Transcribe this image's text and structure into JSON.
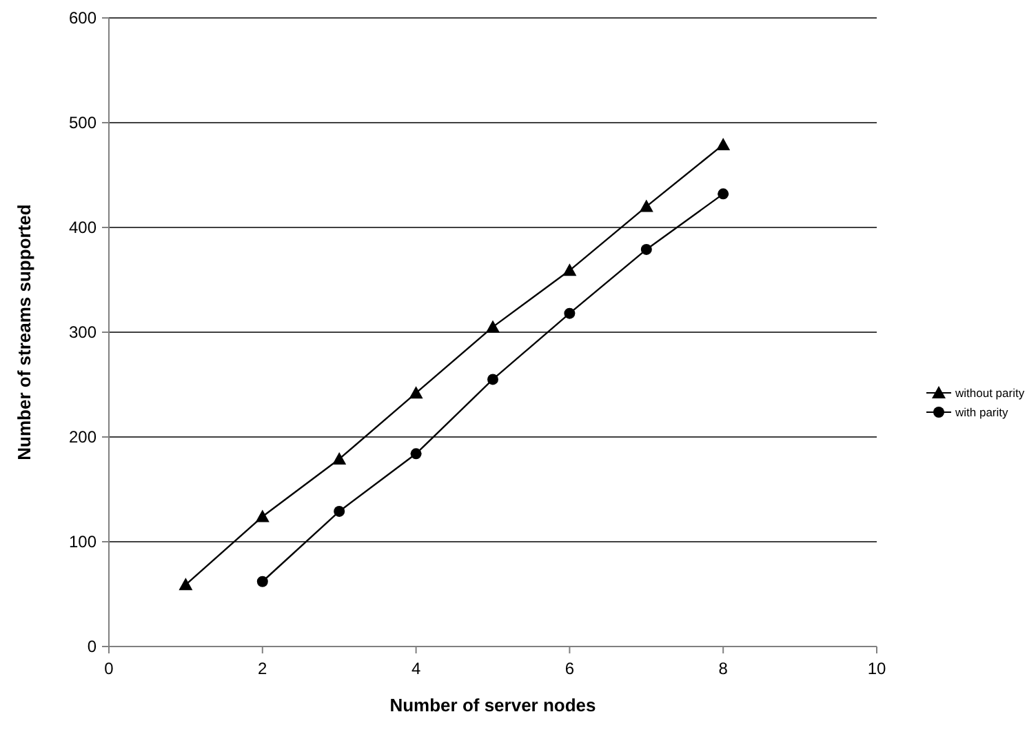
{
  "chart_data": {
    "type": "line",
    "xlabel": "Number of server nodes",
    "ylabel": "Number of streams supported",
    "xlim": [
      0,
      10
    ],
    "xticks": [
      0,
      2,
      4,
      6,
      8,
      10
    ],
    "ylim": [
      0,
      600
    ],
    "yticks": [
      0,
      100,
      200,
      300,
      400,
      500,
      600
    ],
    "grid": "y",
    "legend": "right",
    "line_style": "solid",
    "series": [
      {
        "name": "without parity",
        "color": "#000000",
        "marker": "triangle",
        "x": [
          1,
          2,
          3,
          4,
          5,
          6,
          7,
          8
        ],
        "values": [
          59,
          124,
          179,
          242,
          305,
          359,
          420,
          479
        ]
      },
      {
        "name": "with parity",
        "color": "#000000",
        "marker": "circle",
        "x": [
          2,
          3,
          4,
          5,
          6,
          7,
          8
        ],
        "values": [
          62,
          129,
          184,
          255,
          318,
          379,
          432
        ]
      }
    ]
  }
}
